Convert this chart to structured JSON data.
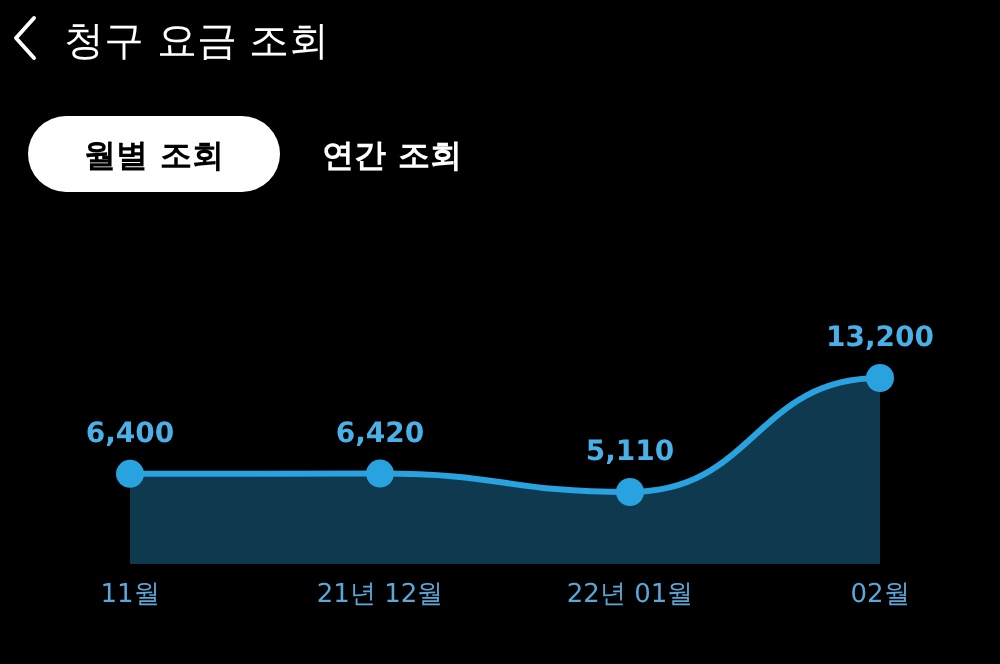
{
  "chart_data": {
    "type": "area",
    "title": "청구 요금 조회",
    "annotations": [
      "월별 조회",
      "연간 조회"
    ],
    "categories": [
      "11월",
      "21년 12월",
      "22년 01월",
      "02월"
    ],
    "series": [
      {
        "color": "#29a3e0",
        "values": [
          6400,
          6420,
          5110,
          13200
        ],
        "value_labels": [
          "6,400",
          "6,420",
          "5,110",
          "13,200"
        ]
      }
    ],
    "tick_labels": "x",
    "marker": "circle",
    "line_style": "solid"
  }
}
